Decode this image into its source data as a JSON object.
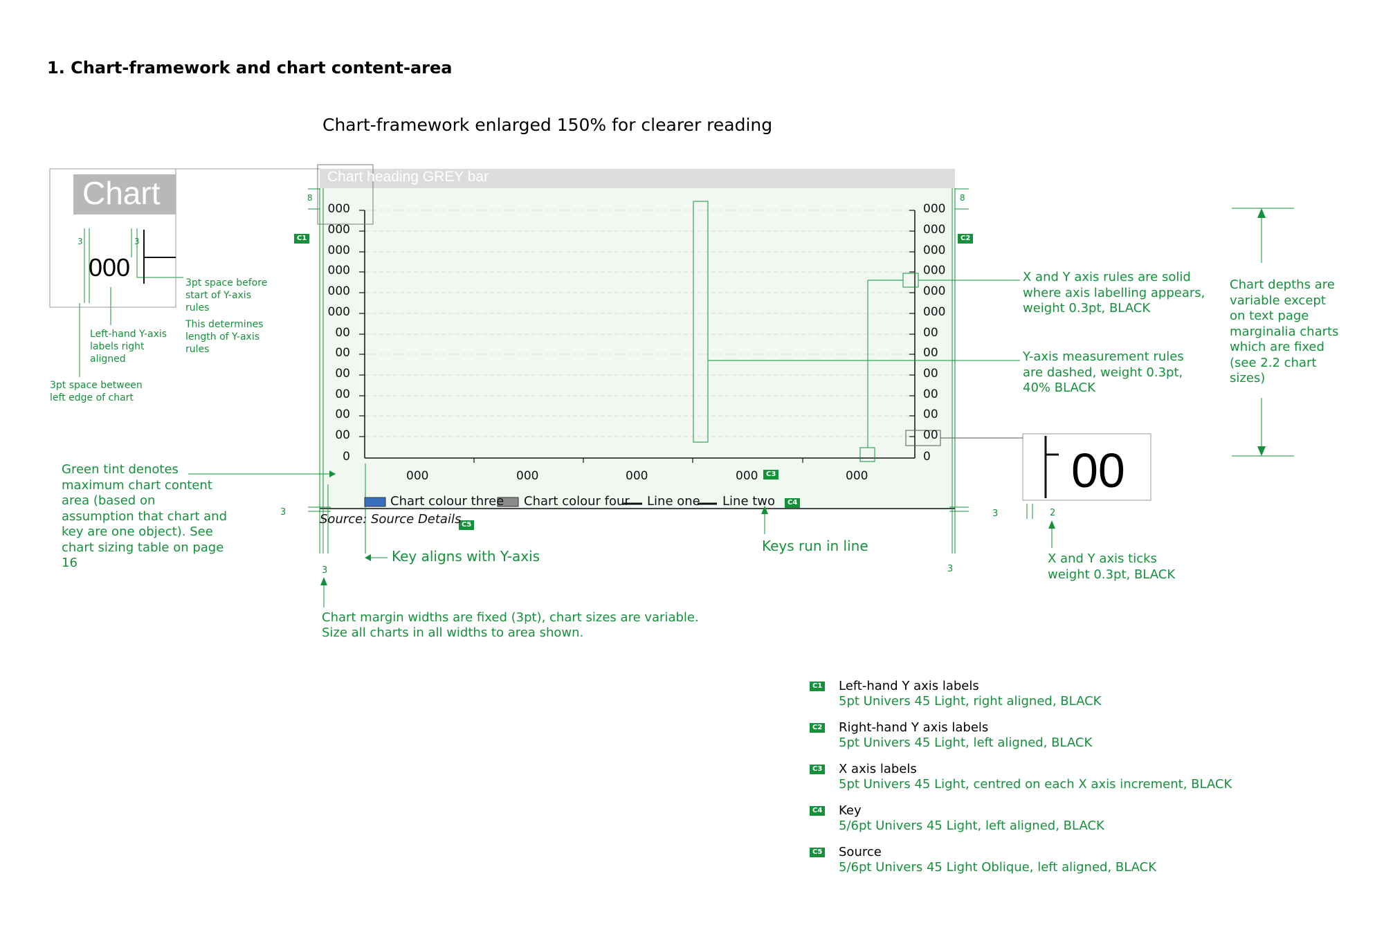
{
  "section_title": "1. Chart-framework and chart content-area",
  "framework_caption": "Chart-framework enlarged 150% for clearer reading",
  "chart_heading": "Chart heading GREY bar",
  "left_y_labels": [
    "000",
    "000",
    "000",
    "000",
    "000",
    "000",
    "00",
    "00",
    "00",
    "00",
    "00",
    "00",
    "0"
  ],
  "right_y_labels": [
    "000",
    "000",
    "000",
    "000",
    "000",
    "000",
    "00",
    "00",
    "00",
    "00",
    "00",
    "00",
    "0"
  ],
  "x_labels": [
    "000",
    "000",
    "000",
    "000",
    "000"
  ],
  "legend": {
    "item1": "Chart colour three",
    "item2": "Chart colour four",
    "item3": "Line one",
    "item4": "Line two"
  },
  "source": "Source: Source Details",
  "badges": {
    "c1": "C1",
    "c2": "C2",
    "c3": "C3",
    "c4": "C4",
    "c5": "C5"
  },
  "margin_labels": {
    "eight_left": "8",
    "eight_right": "8",
    "three_a": "3",
    "three_b": "3",
    "three_c": "3",
    "three_d": "3",
    "two": "2",
    "inset_three_a": "3",
    "inset_three_b": "3"
  },
  "inset": {
    "chart_word": "Chart",
    "value": "000",
    "tick_value": "00"
  },
  "notes": {
    "space_before": "3pt space before start of Y-axis rules",
    "determines": "This determines length of Y-axis rules",
    "left_hand": "Left-hand Y-axis labels right aligned",
    "space_between": "3pt space between left edge of chart",
    "green_tint": "Green tint denotes maximum chart content area (based on assumption that chart and key are one object). See chart sizing table on page 16",
    "key_aligns": "Key aligns with Y-axis",
    "keys_run": "Keys run in line",
    "margin_widths": "Chart margin widths are fixed (3pt), chart sizes are variable.",
    "size_all": "Size all charts in all widths to area shown.",
    "xy_rules": "X and Y axis rules are solid where axis labelling appears, weight 0.3pt, BLACK",
    "y_measure": "Y-axis measurement rules are dashed, weight 0.3pt, 40% BLACK",
    "ticks": "X and Y axis ticks weight 0.3pt, BLACK",
    "depths": "Chart depths are variable except on text page marginalia charts which are fixed (see 2.2 chart sizes)"
  },
  "key_list": [
    {
      "badge": "C1",
      "title": "Left-hand Y axis labels",
      "spec": "5pt Univers 45 Light, right aligned, BLACK"
    },
    {
      "badge": "C2",
      "title": "Right-hand Y axis labels",
      "spec": "5pt Univers 45 Light, left aligned, BLACK"
    },
    {
      "badge": "C3",
      "title": "X axis labels",
      "spec": "5pt Univers 45 Light, centred on each X axis increment, BLACK"
    },
    {
      "badge": "C4",
      "title": "Key",
      "spec": "5/6pt Univers 45 Light, left aligned, BLACK"
    },
    {
      "badge": "C5",
      "title": "Source",
      "spec": "5/6pt Univers 45 Light Oblique, left aligned, BLACK"
    }
  ]
}
